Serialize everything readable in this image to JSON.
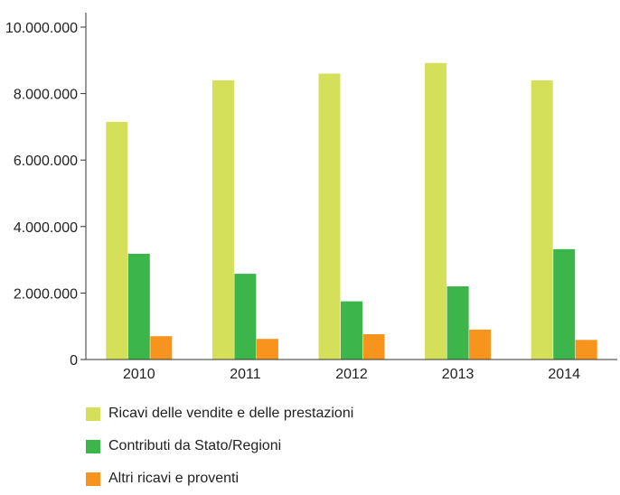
{
  "chart_data": {
    "type": "bar",
    "title": "",
    "xlabel": "",
    "ylabel": "",
    "categories": [
      "2010",
      "2011",
      "2012",
      "2013",
      "2014"
    ],
    "ylim": [
      0,
      10000000
    ],
    "yticks": [
      0,
      2000000,
      4000000,
      6000000,
      8000000,
      10000000
    ],
    "ytick_labels": [
      "0",
      "2.000.000",
      "4.000.000",
      "6.000.000",
      "8.000.000",
      "10.000.000"
    ],
    "grid": false,
    "legend_position": "bottom-left",
    "series": [
      {
        "name": "Ricavi delle vendite e delle prestazioni",
        "color": "#d4df5a",
        "values": [
          7150000,
          8400000,
          8600000,
          8920000,
          8400000
        ]
      },
      {
        "name": "Contributi da Stato/Regioni",
        "color": "#3cb54a",
        "values": [
          3180000,
          2580000,
          1750000,
          2200000,
          3320000
        ]
      },
      {
        "name": "Altri ricavi e proventi",
        "color": "#f7941d",
        "values": [
          700000,
          620000,
          760000,
          900000,
          590000
        ]
      }
    ]
  }
}
